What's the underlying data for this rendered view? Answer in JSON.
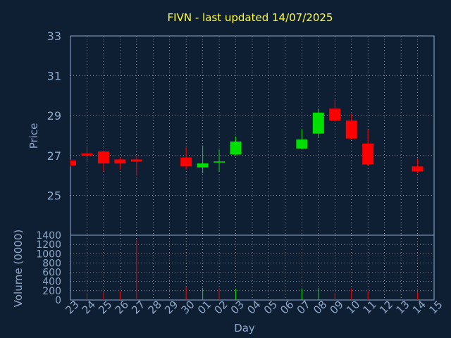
{
  "title": "FIVN - last updated 14/07/2025",
  "colors": {
    "background": "#0f1f33",
    "frame": "#8fa8c8",
    "grid": "#ffffff",
    "title": "#ffff33",
    "labels": "#8fa8c8",
    "up": "#00e000",
    "down": "#ff0000"
  },
  "chart_data": [
    {
      "type": "candlestick",
      "ylabel": "Price",
      "ylim": [
        23,
        33
      ],
      "yticks": [
        25,
        27,
        29,
        31,
        33
      ],
      "grid": true,
      "x_categories": [
        "23",
        "24",
        "25",
        "26",
        "27",
        "28",
        "29",
        "30",
        "01",
        "02",
        "03",
        "04",
        "05",
        "06",
        "07",
        "08",
        "09",
        "10",
        "11",
        "12",
        "13",
        "14",
        "15"
      ],
      "candles": [
        {
          "x": "23",
          "open": 26.75,
          "close": 26.5,
          "high": 26.8,
          "low": 26.45
        },
        {
          "x": "24",
          "open": 27.1,
          "close": 27.0,
          "high": 27.5,
          "low": 26.7
        },
        {
          "x": "25",
          "open": 27.2,
          "close": 26.6,
          "high": 27.25,
          "low": 26.2
        },
        {
          "x": "26",
          "open": 26.8,
          "close": 26.6,
          "high": 26.9,
          "low": 26.3
        },
        {
          "x": "27",
          "open": 26.8,
          "close": 26.7,
          "high": 27.0,
          "low": 26.0
        },
        {
          "x": "30",
          "open": 26.9,
          "close": 26.45,
          "high": 27.4,
          "low": 26.3
        },
        {
          "x": "01",
          "open": 26.4,
          "close": 26.6,
          "high": 27.5,
          "low": 26.1
        },
        {
          "x": "02",
          "open": 26.7,
          "close": 26.7,
          "high": 27.3,
          "low": 26.2
        },
        {
          "x": "03",
          "open": 27.05,
          "close": 27.7,
          "high": 27.95,
          "low": 27.0
        },
        {
          "x": "07",
          "open": 27.35,
          "close": 27.8,
          "high": 28.3,
          "low": 27.3
        },
        {
          "x": "08",
          "open": 28.1,
          "close": 29.15,
          "high": 29.35,
          "low": 27.9
        },
        {
          "x": "09",
          "open": 29.35,
          "close": 28.75,
          "high": 29.8,
          "low": 28.7
        },
        {
          "x": "10",
          "open": 28.75,
          "close": 27.85,
          "high": 29.1,
          "low": 27.8
        },
        {
          "x": "11",
          "open": 27.6,
          "close": 26.55,
          "high": 28.3,
          "low": 26.5
        },
        {
          "x": "14",
          "open": 26.45,
          "close": 26.2,
          "high": 26.85,
          "low": 26.1
        }
      ]
    },
    {
      "type": "bar",
      "ylabel": "Volume (0000)",
      "xlabel": "Day",
      "ylim": [
        0,
        1400
      ],
      "yticks": [
        0,
        200,
        400,
        600,
        800,
        1000,
        1200,
        1400
      ],
      "grid": true,
      "x_categories": [
        "23",
        "24",
        "25",
        "26",
        "27",
        "28",
        "29",
        "30",
        "01",
        "02",
        "03",
        "04",
        "05",
        "06",
        "07",
        "08",
        "09",
        "10",
        "11",
        "12",
        "13",
        "14",
        "15"
      ],
      "bars": [
        {
          "x": "24",
          "value": 150,
          "direction": "down"
        },
        {
          "x": "25",
          "value": 170,
          "direction": "down"
        },
        {
          "x": "26",
          "value": 180,
          "direction": "down"
        },
        {
          "x": "27",
          "value": 1300,
          "direction": "down"
        },
        {
          "x": "30",
          "value": 280,
          "direction": "down"
        },
        {
          "x": "01",
          "value": 260,
          "direction": "up"
        },
        {
          "x": "02",
          "value": 250,
          "direction": "down"
        },
        {
          "x": "03",
          "value": 240,
          "direction": "up"
        },
        {
          "x": "07",
          "value": 250,
          "direction": "up"
        },
        {
          "x": "08",
          "value": 260,
          "direction": "up"
        },
        {
          "x": "09",
          "value": 150,
          "direction": "down"
        },
        {
          "x": "10",
          "value": 250,
          "direction": "down"
        },
        {
          "x": "11",
          "value": 190,
          "direction": "down"
        },
        {
          "x": "14",
          "value": 170,
          "direction": "down"
        }
      ]
    }
  ]
}
